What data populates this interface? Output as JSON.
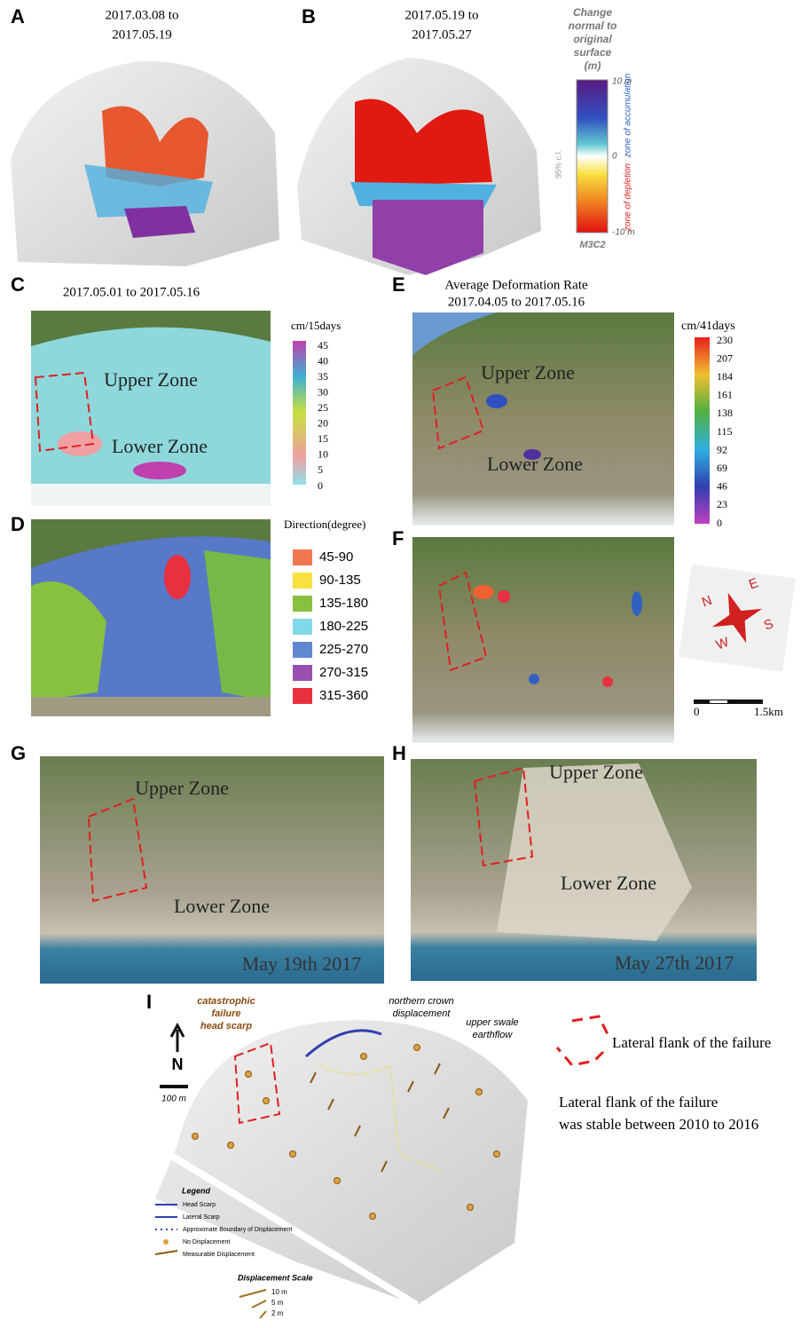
{
  "panels": {
    "a": {
      "label": "A",
      "caption": [
        "2017.03.08 to",
        "2017.05.19"
      ]
    },
    "b": {
      "label": "B",
      "caption": [
        "2017.05.19 to",
        "2017.05.27"
      ],
      "scale": {
        "title": [
          "Change",
          "normal to",
          "original",
          "surface",
          "(m)"
        ],
        "top": "10 m",
        "middle": "0",
        "bottom": "-10 m",
        "accumulation": "zone of accumulation",
        "depletion": "zone of depletion",
        "method": "M3C2",
        "confidence": "95% c.l."
      }
    },
    "c": {
      "label": "C",
      "caption": "2017.05.01 to 2017.05.16",
      "zones": [
        "Upper Zone",
        "Lower Zone"
      ],
      "unit": "cm/15days",
      "ticks": [
        "45",
        "40",
        "35",
        "30",
        "25",
        "20",
        "15",
        "10",
        "5",
        "0"
      ]
    },
    "d": {
      "label": "D",
      "legend_title": "Direction(degree)",
      "legend": [
        "45-90",
        "90-135",
        "135-180",
        "180-225",
        "225-270",
        "270-315",
        "315-360"
      ]
    },
    "e": {
      "label": "E",
      "caption": [
        "Average Deformation Rate",
        "2017.04.05 to 2017.05.16"
      ],
      "zones": [
        "Upper Zone",
        "Lower Zone"
      ],
      "unit": "cm/41days",
      "ticks": [
        "230",
        "207",
        "184",
        "161",
        "138",
        "115",
        "92",
        "69",
        "46",
        "23",
        "0"
      ]
    },
    "f": {
      "label": "F",
      "compass": [
        "N",
        "E",
        "S",
        "W"
      ],
      "scale": [
        "0",
        "1.5km"
      ]
    },
    "g": {
      "label": "G",
      "zones": [
        "Upper Zone",
        "Lower Zone"
      ],
      "date": "May 19th 2017"
    },
    "h": {
      "label": "H",
      "zones": [
        "Upper Zone",
        "Lower Zone"
      ],
      "date": "May 27th 2017"
    },
    "i": {
      "label": "I",
      "annotations": [
        "catastrophic",
        "failure",
        "head scarp",
        "northern crown",
        "displacement",
        "upper swale",
        "earthflow"
      ],
      "north": "N",
      "scale": "100 m",
      "legend_title": "Legend",
      "legend": [
        "Head Scarp",
        "Lateral Scarp",
        "Approximate Boundary of Displacement",
        "No Displacement",
        "Measurable Displacement"
      ],
      "displacement_title": "Displacement Scale",
      "displacement": [
        "10 m",
        "5 m",
        "2 m"
      ],
      "flank_label": "Lateral flank of the failure",
      "note": [
        "Lateral flank of the failure",
        "was stable between 2010 to 2016"
      ]
    }
  }
}
